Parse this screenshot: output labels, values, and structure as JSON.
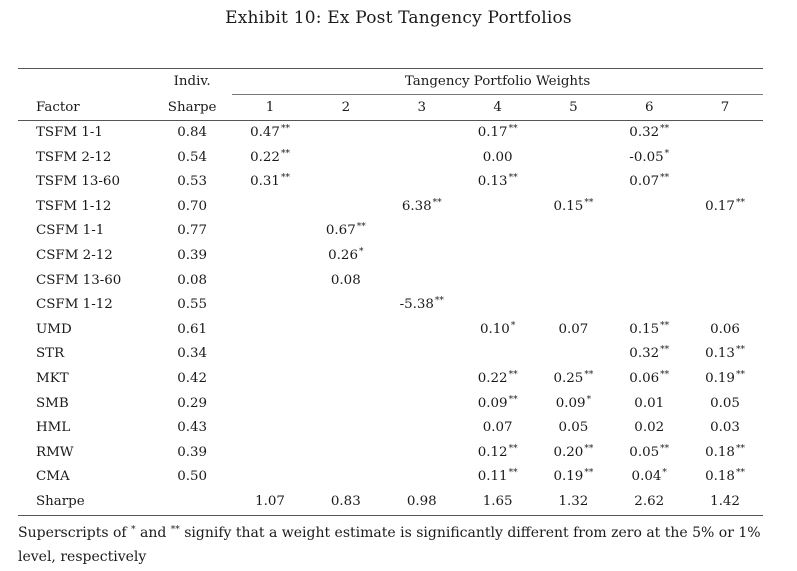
{
  "title": "Exhibit 10: Ex Post Tangency Portfolios",
  "header": {
    "factor_label": "Factor",
    "sharpe_label_line1": "Indiv.",
    "sharpe_label_line2": "Sharpe",
    "weights_group_label": "Tangency Portfolio Weights",
    "portfolio_numbers": [
      "1",
      "2",
      "3",
      "4",
      "5",
      "6",
      "7"
    ]
  },
  "rows": [
    {
      "factor": "TSFM 1-1",
      "sharpe": "0.84",
      "w": [
        [
          "0.47",
          "**"
        ],
        [
          "",
          ""
        ],
        [
          "",
          ""
        ],
        [
          "0.17",
          "**"
        ],
        [
          "",
          ""
        ],
        [
          "0.32",
          "**"
        ],
        [
          "",
          ""
        ]
      ]
    },
    {
      "factor": "TSFM 2-12",
      "sharpe": "0.54",
      "w": [
        [
          "0.22",
          "**"
        ],
        [
          "",
          ""
        ],
        [
          "",
          ""
        ],
        [
          "0.00",
          ""
        ],
        [
          "",
          ""
        ],
        [
          "-0.05",
          "*"
        ],
        [
          "",
          ""
        ]
      ]
    },
    {
      "factor": "TSFM 13-60",
      "sharpe": "0.53",
      "w": [
        [
          "0.31",
          "**"
        ],
        [
          "",
          ""
        ],
        [
          "",
          ""
        ],
        [
          "0.13",
          "**"
        ],
        [
          "",
          ""
        ],
        [
          "0.07",
          "**"
        ],
        [
          "",
          ""
        ]
      ]
    },
    {
      "factor": "TSFM 1-12",
      "sharpe": "0.70",
      "w": [
        [
          "",
          ""
        ],
        [
          "",
          ""
        ],
        [
          "6.38",
          "**"
        ],
        [
          "",
          ""
        ],
        [
          "0.15",
          "**"
        ],
        [
          "",
          ""
        ],
        [
          "0.17",
          "**"
        ]
      ]
    },
    {
      "factor": "CSFM 1-1",
      "sharpe": "0.77",
      "w": [
        [
          "",
          ""
        ],
        [
          "0.67",
          "**"
        ],
        [
          "",
          ""
        ],
        [
          "",
          ""
        ],
        [
          "",
          ""
        ],
        [
          "",
          ""
        ],
        [
          "",
          ""
        ]
      ]
    },
    {
      "factor": "CSFM 2-12",
      "sharpe": "0.39",
      "w": [
        [
          "",
          ""
        ],
        [
          "0.26",
          "*"
        ],
        [
          "",
          ""
        ],
        [
          "",
          ""
        ],
        [
          "",
          ""
        ],
        [
          "",
          ""
        ],
        [
          "",
          ""
        ]
      ]
    },
    {
      "factor": "CSFM 13-60",
      "sharpe": "0.08",
      "w": [
        [
          "",
          ""
        ],
        [
          "0.08",
          ""
        ],
        [
          "",
          ""
        ],
        [
          "",
          ""
        ],
        [
          "",
          ""
        ],
        [
          "",
          ""
        ],
        [
          "",
          ""
        ]
      ]
    },
    {
      "factor": "CSFM 1-12",
      "sharpe": "0.55",
      "w": [
        [
          "",
          ""
        ],
        [
          "",
          ""
        ],
        [
          "-5.38",
          "**"
        ],
        [
          "",
          ""
        ],
        [
          "",
          ""
        ],
        [
          "",
          ""
        ],
        [
          "",
          ""
        ]
      ]
    },
    {
      "factor": "UMD",
      "sharpe": "0.61",
      "w": [
        [
          "",
          ""
        ],
        [
          "",
          ""
        ],
        [
          "",
          ""
        ],
        [
          "0.10",
          "*"
        ],
        [
          "0.07",
          ""
        ],
        [
          "0.15",
          "**"
        ],
        [
          "0.06",
          ""
        ]
      ]
    },
    {
      "factor": "STR",
      "sharpe": "0.34",
      "w": [
        [
          "",
          ""
        ],
        [
          "",
          ""
        ],
        [
          "",
          ""
        ],
        [
          "",
          ""
        ],
        [
          "",
          ""
        ],
        [
          "0.32",
          "**"
        ],
        [
          "0.13",
          "**"
        ]
      ]
    },
    {
      "factor": "MKT",
      "sharpe": "0.42",
      "w": [
        [
          "",
          ""
        ],
        [
          "",
          ""
        ],
        [
          "",
          ""
        ],
        [
          "0.22",
          "**"
        ],
        [
          "0.25",
          "**"
        ],
        [
          "0.06",
          "**"
        ],
        [
          "0.19",
          "**"
        ]
      ]
    },
    {
      "factor": "SMB",
      "sharpe": "0.29",
      "w": [
        [
          "",
          ""
        ],
        [
          "",
          ""
        ],
        [
          "",
          ""
        ],
        [
          "0.09",
          "**"
        ],
        [
          "0.09",
          "*"
        ],
        [
          "0.01",
          ""
        ],
        [
          "0.05",
          ""
        ]
      ]
    },
    {
      "factor": "HML",
      "sharpe": "0.43",
      "w": [
        [
          "",
          ""
        ],
        [
          "",
          ""
        ],
        [
          "",
          ""
        ],
        [
          "0.07",
          ""
        ],
        [
          "0.05",
          ""
        ],
        [
          "0.02",
          ""
        ],
        [
          "0.03",
          ""
        ]
      ]
    },
    {
      "factor": "RMW",
      "sharpe": "0.39",
      "w": [
        [
          "",
          ""
        ],
        [
          "",
          ""
        ],
        [
          "",
          ""
        ],
        [
          "0.12",
          "**"
        ],
        [
          "0.20",
          "**"
        ],
        [
          "0.05",
          "**"
        ],
        [
          "0.18",
          "**"
        ]
      ]
    },
    {
      "factor": "CMA",
      "sharpe": "0.50",
      "w": [
        [
          "",
          ""
        ],
        [
          "",
          ""
        ],
        [
          "",
          ""
        ],
        [
          "0.11",
          "**"
        ],
        [
          "0.19",
          "**"
        ],
        [
          "0.04",
          "*"
        ],
        [
          "0.18",
          "**"
        ]
      ]
    }
  ],
  "sharpe_row": {
    "label": "Sharpe",
    "values": [
      "1.07",
      "0.83",
      "0.98",
      "1.65",
      "1.32",
      "2.62",
      "1.42"
    ]
  },
  "note": "Superscripts of * and ** signify that a weight estimate is significantly different from zero at the 5% or 1% level, respectively"
}
